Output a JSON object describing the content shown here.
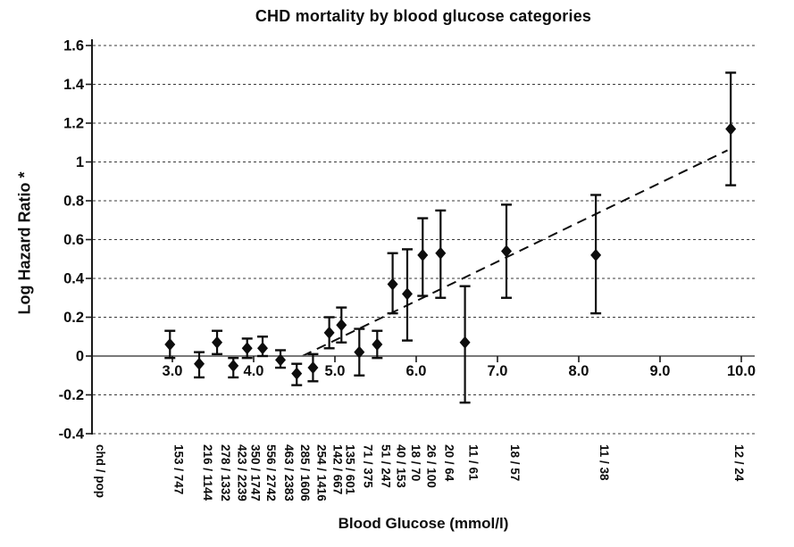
{
  "title": "CHD mortality by blood glucose categories",
  "x_axis": {
    "label": "Blood Glucose (mmol/l)",
    "ratio_axis_header": "chd / pop"
  },
  "y_axis": {
    "label": "Log Hazard Ratio *"
  },
  "colors": {
    "ink": "#0d0d0d",
    "axis": "#1a1a1a",
    "zero_line": "#666666",
    "gridline": "#3a3a3a",
    "background": "#ffffff"
  },
  "chart_data": {
    "type": "scatter",
    "title": "CHD mortality by blood glucose categories",
    "xlabel": "Blood Glucose (mmol/l)",
    "ylabel": "Log Hazard Ratio *",
    "xlim": [
      2.0,
      10.17
    ],
    "ylim": [
      -0.4,
      1.6
    ],
    "grid": true,
    "legend": "none",
    "marker": "diamond",
    "x_ticks": [
      {
        "value": 3,
        "label": "3.0"
      },
      {
        "value": 4,
        "label": "4.0"
      },
      {
        "value": 5,
        "label": "5.0"
      },
      {
        "value": 6,
        "label": "6.0"
      },
      {
        "value": 7,
        "label": "7.0"
      },
      {
        "value": 8,
        "label": "8.0"
      },
      {
        "value": 9,
        "label": "9.0"
      },
      {
        "value": 10,
        "label": "10.0"
      }
    ],
    "y_ticks": [
      {
        "value": 1.6,
        "label": "1.6"
      },
      {
        "value": 1.4,
        "label": "1.4"
      },
      {
        "value": 1.2,
        "label": "1.2"
      },
      {
        "value": 1.0,
        "label": "1"
      },
      {
        "value": 0.8,
        "label": "0.8"
      },
      {
        "value": 0.6,
        "label": "0.6"
      },
      {
        "value": 0.4,
        "label": "0.4"
      },
      {
        "value": 0.2,
        "label": "0.2"
      },
      {
        "value": 0.0,
        "label": "0"
      },
      {
        "value": -0.2,
        "label": "-0.2"
      },
      {
        "value": -0.4,
        "label": "-0.4"
      }
    ],
    "points": [
      {
        "x": 2.97,
        "y": 0.06,
        "ci_low": -0.01,
        "ci_high": 0.13,
        "category_label": "153 / 747"
      },
      {
        "x": 3.33,
        "y": -0.04,
        "ci_low": -0.11,
        "ci_high": 0.02,
        "category_label": "216 / 1144"
      },
      {
        "x": 3.55,
        "y": 0.07,
        "ci_low": 0.01,
        "ci_high": 0.13,
        "category_label": "278 / 1332"
      },
      {
        "x": 3.75,
        "y": -0.05,
        "ci_low": -0.11,
        "ci_high": -0.01,
        "category_label": "423 / 2239"
      },
      {
        "x": 3.92,
        "y": 0.04,
        "ci_low": -0.01,
        "ci_high": 0.09,
        "category_label": "350 / 1747"
      },
      {
        "x": 4.11,
        "y": 0.04,
        "ci_low": 0.0,
        "ci_high": 0.1,
        "category_label": "556 / 2742"
      },
      {
        "x": 4.33,
        "y": -0.02,
        "ci_low": -0.06,
        "ci_high": 0.03,
        "category_label": "463 / 2383"
      },
      {
        "x": 4.53,
        "y": -0.09,
        "ci_low": -0.15,
        "ci_high": -0.04,
        "category_label": "285 / 1606"
      },
      {
        "x": 4.73,
        "y": -0.06,
        "ci_low": -0.13,
        "ci_high": 0.01,
        "category_label": "254 / 1416"
      },
      {
        "x": 4.93,
        "y": 0.12,
        "ci_low": 0.04,
        "ci_high": 0.2,
        "category_label": "142 / 667"
      },
      {
        "x": 5.08,
        "y": 0.16,
        "ci_low": 0.07,
        "ci_high": 0.25,
        "category_label": "135 / 601"
      },
      {
        "x": 5.3,
        "y": 0.02,
        "ci_low": -0.1,
        "ci_high": 0.14,
        "category_label": "71 / 375"
      },
      {
        "x": 5.52,
        "y": 0.06,
        "ci_low": -0.01,
        "ci_high": 0.13,
        "category_label": "51 / 247"
      },
      {
        "x": 5.71,
        "y": 0.37,
        "ci_low": 0.22,
        "ci_high": 0.53,
        "category_label": "40 / 153"
      },
      {
        "x": 5.89,
        "y": 0.32,
        "ci_low": 0.08,
        "ci_high": 0.55,
        "category_label": "18 / 70"
      },
      {
        "x": 6.08,
        "y": 0.52,
        "ci_low": 0.31,
        "ci_high": 0.71,
        "category_label": "26 / 100"
      },
      {
        "x": 6.3,
        "y": 0.53,
        "ci_low": 0.3,
        "ci_high": 0.75,
        "category_label": "20 / 64"
      },
      {
        "x": 6.6,
        "y": 0.07,
        "ci_low": -0.24,
        "ci_high": 0.36,
        "category_label": "11 / 61"
      },
      {
        "x": 7.11,
        "y": 0.54,
        "ci_low": 0.3,
        "ci_high": 0.78,
        "category_label": "18 / 57"
      },
      {
        "x": 8.21,
        "y": 0.52,
        "ci_low": 0.22,
        "ci_high": 0.83,
        "category_label": "11 / 38"
      },
      {
        "x": 9.87,
        "y": 1.17,
        "ci_low": 0.88,
        "ci_high": 1.46,
        "category_label": "12 / 24"
      }
    ],
    "trend_line": {
      "style": "dashed",
      "x1": 4.6,
      "y1": 0.0,
      "x2": 9.83,
      "y2": 1.06
    }
  }
}
